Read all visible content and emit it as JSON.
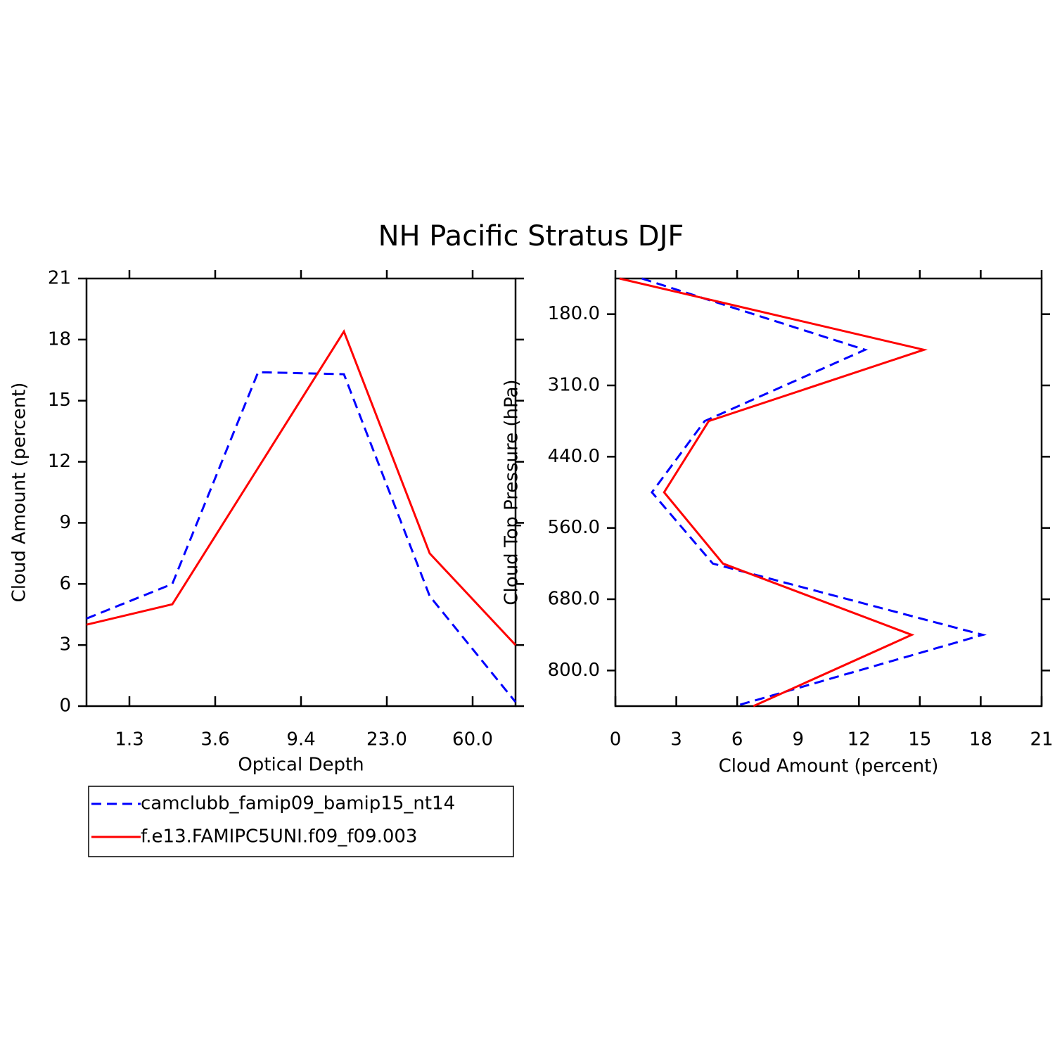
{
  "title": "NH Pacific Stratus DJF",
  "chart_data": [
    {
      "type": "line",
      "x_label": "Optical Depth",
      "y_label": "Cloud Amount (percent)",
      "x": [
        0.5,
        1.5,
        2.5,
        3.5,
        4.5,
        5.5
      ],
      "xlim": [
        0.5,
        5.5
      ],
      "xticks": [
        {
          "value": 1,
          "label": "1.3"
        },
        {
          "value": 2,
          "label": "3.6"
        },
        {
          "value": 3,
          "label": "9.4"
        },
        {
          "value": 4,
          "label": "23.0"
        },
        {
          "value": 5,
          "label": "60.0"
        }
      ],
      "ylim": [
        0,
        21
      ],
      "yticks": [
        0,
        3,
        6,
        9,
        12,
        15,
        18,
        21
      ],
      "series": [
        {
          "name": "camclubb_famip09_bamip15_nt14",
          "color": "#0000ff",
          "dashed": true,
          "values": [
            4.3,
            6.0,
            16.4,
            16.3,
            5.4,
            0.2
          ]
        },
        {
          "name": "f.e13.FAMIPC5UNI.f09_f09.003",
          "color": "#ff0000",
          "dashed": false,
          "values": [
            4.0,
            5.0,
            11.7,
            18.4,
            7.5,
            3.0
          ]
        }
      ]
    },
    {
      "type": "line",
      "orientation": "horizontal",
      "x_label": "Cloud Amount (percent)",
      "y_label": "Cloud Top Pressure (hPa)",
      "y": [
        0,
        1,
        2,
        3,
        4,
        5,
        6
      ],
      "ylim": [
        6,
        0
      ],
      "yticks": [
        {
          "value": 0.5,
          "label": "180.0"
        },
        {
          "value": 1.5,
          "label": "310.0"
        },
        {
          "value": 2.5,
          "label": "440.0"
        },
        {
          "value": 3.5,
          "label": "560.0"
        },
        {
          "value": 4.5,
          "label": "680.0"
        },
        {
          "value": 5.5,
          "label": "800.0"
        }
      ],
      "xlim": [
        0,
        21
      ],
      "xticks": [
        0,
        3,
        6,
        9,
        12,
        15,
        18,
        21
      ],
      "series": [
        {
          "color": "#0000ff",
          "dashed": true,
          "values": [
            1.3,
            12.3,
            4.4,
            1.8,
            4.8,
            18.1,
            5.9
          ]
        },
        {
          "color": "#ff0000",
          "dashed": false,
          "values": [
            0.2,
            15.2,
            4.6,
            2.4,
            5.3,
            14.6,
            6.8
          ]
        }
      ]
    }
  ]
}
